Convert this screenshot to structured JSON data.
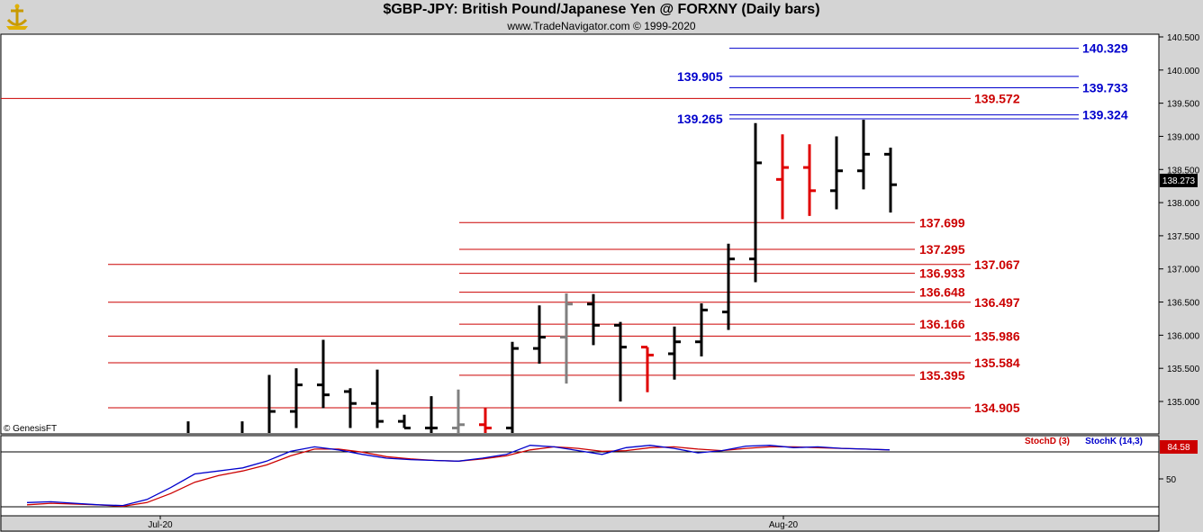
{
  "header": {
    "title": "$GBP-JPY:  British Pound/Japanese Yen @ FORXNY  (Daily bars)",
    "subtitle": "www.TradeNavigator.com © 1999-2020"
  },
  "watermark": "© GenesisFT",
  "logo_icon": "ship-anchor-logo-icon",
  "colors": {
    "bull": "#000000",
    "bear_red": "#e00000",
    "neutral_gray": "#808080",
    "blue": "#0000cc",
    "red_line": "#cc0000"
  },
  "price_axis": {
    "ticks": [
      "140.500",
      "140.000",
      "139.500",
      "139.000",
      "138.500",
      "138.000",
      "137.500",
      "137.000",
      "136.500",
      "136.000",
      "135.500",
      "135.000"
    ],
    "current_price": "138.273"
  },
  "date_axis": {
    "labels": [
      "Jul-20",
      "Aug-20"
    ]
  },
  "stoch": {
    "label_d": "StochD (3)",
    "label_k": "StochK (14,3)",
    "value": "84.58",
    "tick": "50"
  },
  "chart_data": {
    "type": "ohlc",
    "title": "$GBP-JPY:  British Pound/Japanese Yen @ FORXNY  (Daily bars)",
    "ylim": [
      134.6,
      140.6
    ],
    "x_labels": [
      "Jul-20",
      "Aug-20"
    ],
    "bars": [
      {
        "o": 134.5,
        "h": 134.7,
        "l": 134.3,
        "c": 134.5,
        "color": "black"
      },
      {
        "o": 134.5,
        "h": 134.7,
        "l": 134.3,
        "c": 134.5,
        "color": "black"
      },
      {
        "o": 134.5,
        "h": 135.4,
        "l": 134.4,
        "c": 134.85,
        "color": "black"
      },
      {
        "o": 134.85,
        "h": 135.5,
        "l": 134.6,
        "c": 135.25,
        "color": "black"
      },
      {
        "o": 135.25,
        "h": 135.93,
        "l": 134.9,
        "c": 135.1,
        "color": "black"
      },
      {
        "o": 135.15,
        "h": 135.2,
        "l": 134.6,
        "c": 134.97,
        "color": "black"
      },
      {
        "o": 134.97,
        "h": 135.48,
        "l": 134.6,
        "c": 134.7,
        "color": "black"
      },
      {
        "o": 134.7,
        "h": 134.8,
        "l": 134.6,
        "c": 134.6,
        "color": "black"
      },
      {
        "o": 134.6,
        "h": 135.08,
        "l": 134.5,
        "c": 134.6,
        "color": "black"
      },
      {
        "o": 134.6,
        "h": 135.18,
        "l": 134.5,
        "c": 134.65,
        "color": "gray"
      },
      {
        "o": 134.65,
        "h": 134.9,
        "l": 134.5,
        "c": 134.6,
        "color": "red"
      },
      {
        "o": 134.6,
        "h": 135.9,
        "l": 134.5,
        "c": 135.8,
        "color": "black"
      },
      {
        "o": 135.8,
        "h": 136.45,
        "l": 135.57,
        "c": 135.97,
        "color": "black"
      },
      {
        "o": 135.97,
        "h": 136.63,
        "l": 135.27,
        "c": 136.47,
        "color": "gray"
      },
      {
        "o": 136.47,
        "h": 136.62,
        "l": 135.85,
        "c": 136.15,
        "color": "black"
      },
      {
        "o": 136.15,
        "h": 136.2,
        "l": 135.0,
        "c": 135.82,
        "color": "black"
      },
      {
        "o": 135.82,
        "h": 135.82,
        "l": 135.14,
        "c": 135.7,
        "color": "red"
      },
      {
        "o": 135.72,
        "h": 136.13,
        "l": 135.33,
        "c": 135.9,
        "color": "black"
      },
      {
        "o": 135.9,
        "h": 136.48,
        "l": 135.68,
        "c": 136.38,
        "color": "black"
      },
      {
        "o": 136.35,
        "h": 137.38,
        "l": 136.08,
        "c": 137.15,
        "color": "black"
      },
      {
        "o": 137.15,
        "h": 139.2,
        "l": 136.8,
        "c": 138.6,
        "color": "black"
      },
      {
        "o": 138.35,
        "h": 139.03,
        "l": 137.75,
        "c": 138.53,
        "color": "red"
      },
      {
        "o": 138.53,
        "h": 138.88,
        "l": 137.8,
        "c": 138.18,
        "color": "red"
      },
      {
        "o": 138.18,
        "h": 139.0,
        "l": 137.9,
        "c": 138.48,
        "color": "black"
      },
      {
        "o": 138.48,
        "h": 139.25,
        "l": 138.2,
        "c": 138.73,
        "color": "black"
      },
      {
        "o": 138.73,
        "h": 138.83,
        "l": 137.85,
        "c": 138.27,
        "color": "black"
      }
    ],
    "levels_red": [
      {
        "value": 139.572,
        "label": "139.572",
        "scope": "full"
      },
      {
        "value": 137.699,
        "label": "137.699",
        "scope": "short"
      },
      {
        "value": 137.295,
        "label": "137.295",
        "scope": "short"
      },
      {
        "value": 137.067,
        "label": "137.067",
        "scope": "long"
      },
      {
        "value": 136.933,
        "label": "136.933",
        "scope": "short"
      },
      {
        "value": 136.648,
        "label": "136.648",
        "scope": "short"
      },
      {
        "value": 136.497,
        "label": "136.497",
        "scope": "long"
      },
      {
        "value": 136.166,
        "label": "136.166",
        "scope": "short"
      },
      {
        "value": 135.986,
        "label": "135.986",
        "scope": "long"
      },
      {
        "value": 135.584,
        "label": "135.584",
        "scope": "long"
      },
      {
        "value": 135.395,
        "label": "135.395",
        "scope": "short"
      },
      {
        "value": 134.905,
        "label": "134.905",
        "scope": "long"
      }
    ],
    "levels_blue": [
      {
        "value": 140.329,
        "label": "140.329",
        "side": "right"
      },
      {
        "value": 139.905,
        "label": "139.905",
        "side": "left"
      },
      {
        "value": 139.733,
        "label": "139.733",
        "side": "right"
      },
      {
        "value": 139.324,
        "label": "139.324",
        "side": "right"
      },
      {
        "value": 139.265,
        "label": "139.265",
        "side": "left"
      }
    ],
    "stoch_k": [
      20,
      21,
      19,
      17,
      16,
      24,
      40,
      58,
      62,
      66,
      75,
      88,
      94,
      90,
      84,
      79,
      77,
      76,
      75,
      79,
      84,
      96,
      94,
      89,
      84,
      93,
      96,
      92,
      86,
      89,
      95,
      96,
      93,
      94,
      92,
      91,
      90
    ],
    "stoch_d": [
      17,
      19,
      18,
      17,
      15,
      20,
      32,
      47,
      56,
      62,
      70,
      82,
      91,
      91,
      87,
      81,
      78,
      76,
      75,
      78,
      82,
      90,
      94,
      92,
      88,
      89,
      93,
      94,
      91,
      89,
      92,
      94,
      94,
      93,
      92,
      91,
      90
    ],
    "stoch_ylim": [
      0,
      100
    ]
  }
}
